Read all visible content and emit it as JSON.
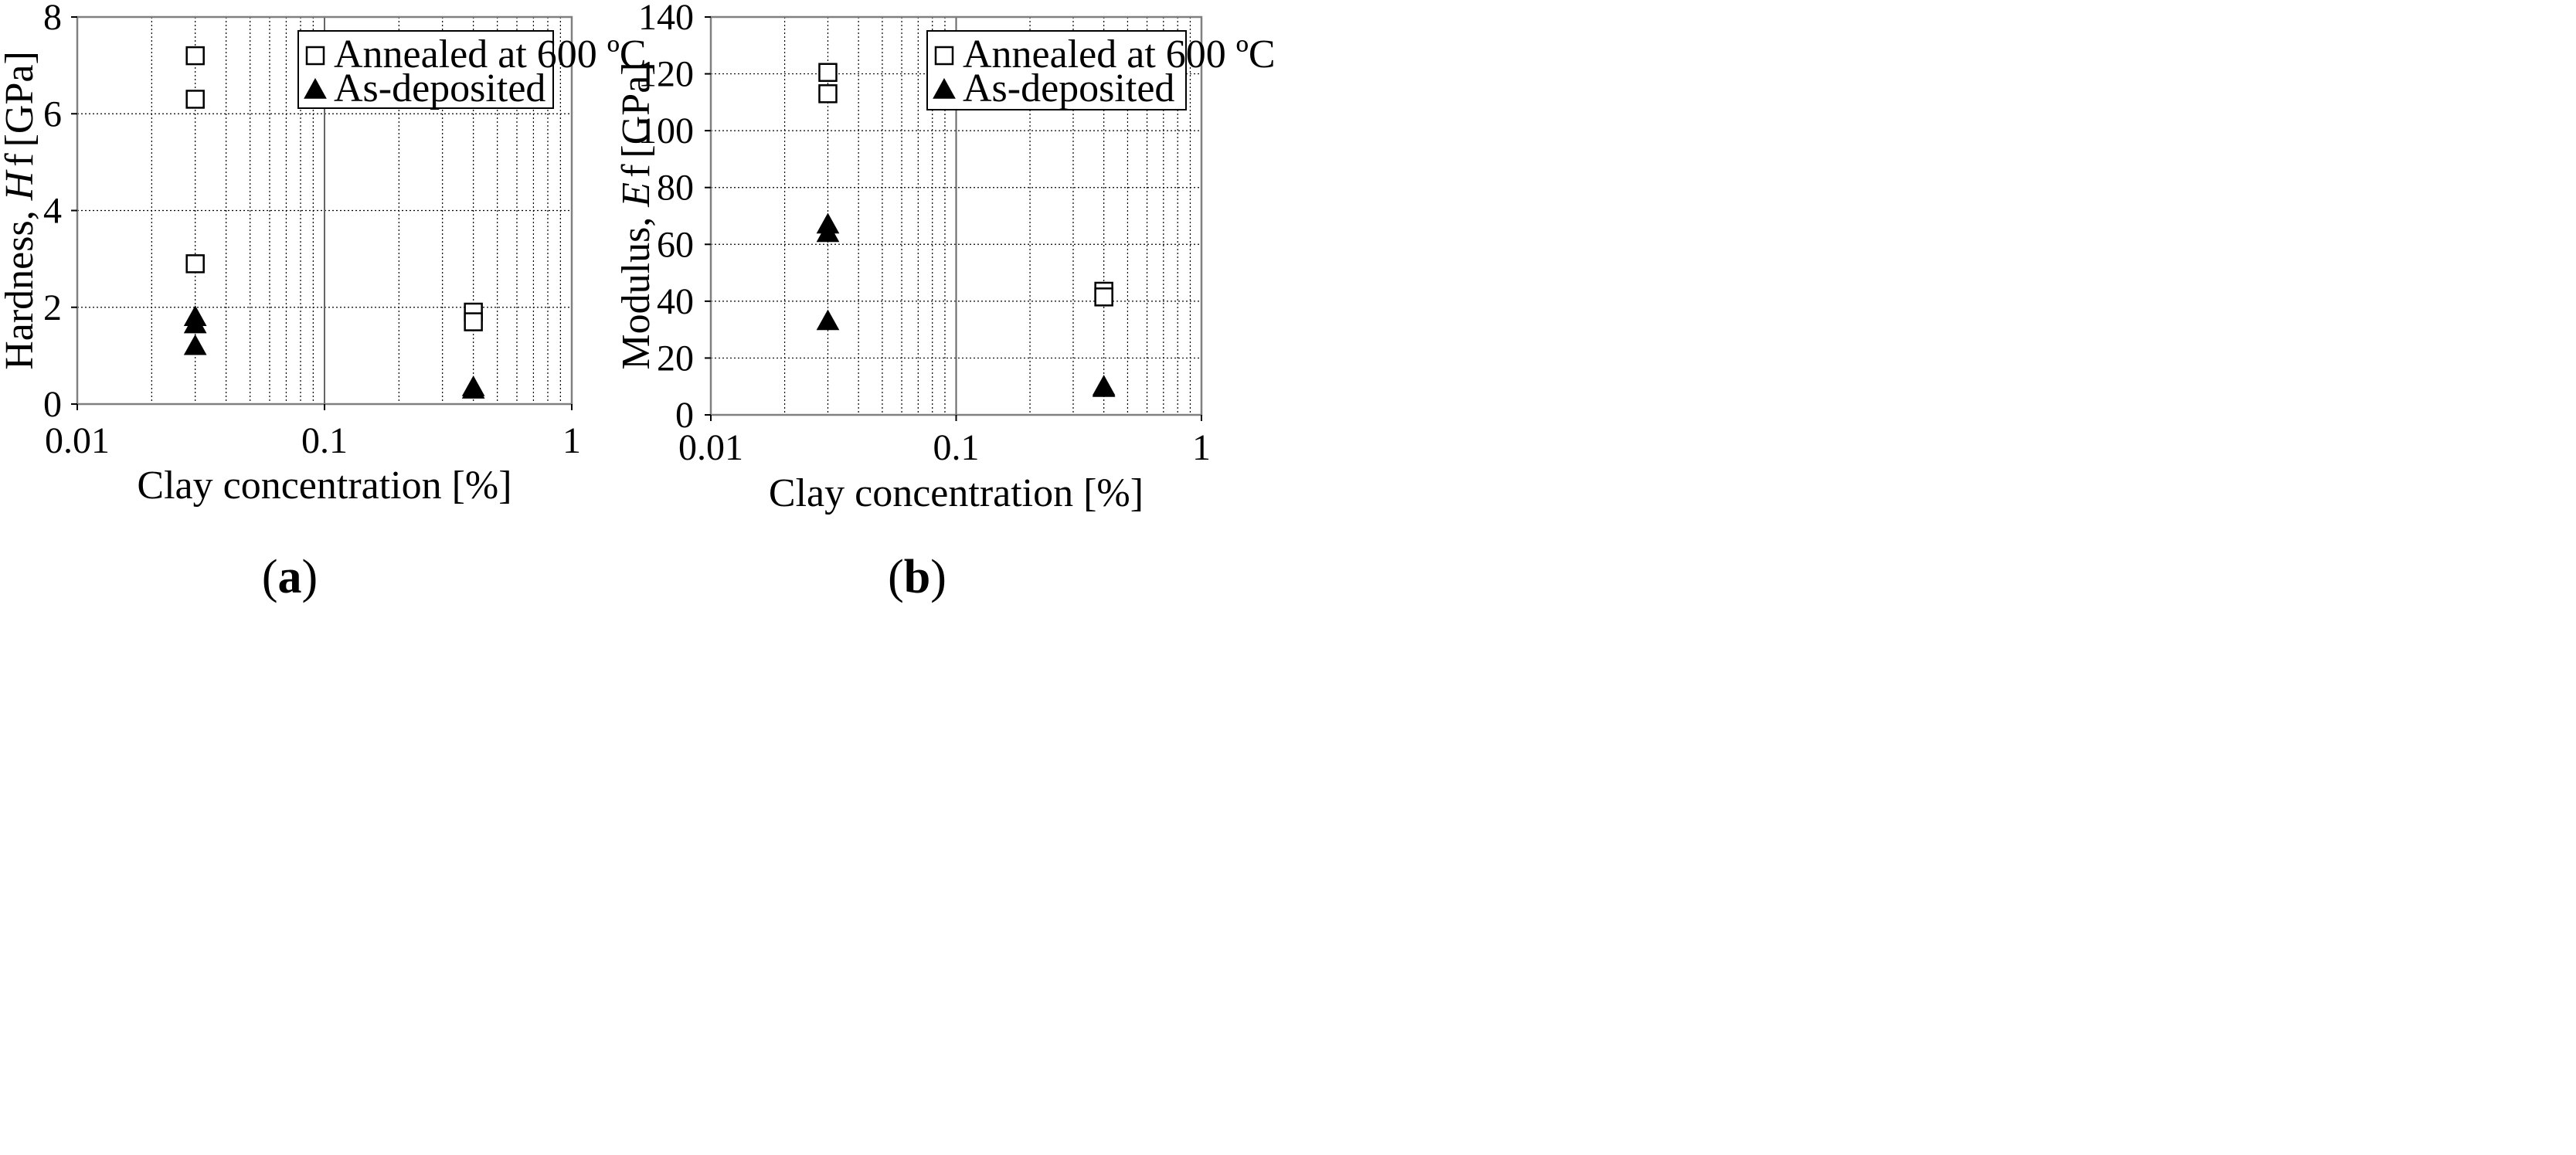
{
  "chart_data": [
    {
      "type": "scatter",
      "panel": "(a)",
      "caption_open": "(",
      "caption_letter": "a",
      "caption_close": ")",
      "xlabel": "Clay concentration [%]",
      "ylabel_prefix": "Hardness, ",
      "ylabel_symbol": "H",
      "ylabel_sub": "f",
      "ylabel_unit": "[GPa]",
      "x_scale": "log",
      "xlim": [
        0.01,
        1
      ],
      "ylim": [
        0,
        8
      ],
      "xticks": [
        "0.01",
        "0.1",
        "1"
      ],
      "yticks": [
        "0",
        "2",
        "4",
        "6",
        "8"
      ],
      "grid": true,
      "legend_position": "top-right",
      "series": [
        {
          "name": "Annealed at 600 ºC",
          "marker": "open-square",
          "x": [
            0.03,
            0.03,
            0.03,
            0.4,
            0.4
          ],
          "y": [
            7.2,
            6.3,
            2.9,
            1.9,
            1.7
          ]
        },
        {
          "name": "As-deposited",
          "marker": "filled-triangle",
          "x": [
            0.03,
            0.03,
            0.03,
            0.4,
            0.4
          ],
          "y": [
            1.8,
            1.65,
            1.2,
            0.35,
            0.3
          ]
        }
      ]
    },
    {
      "type": "scatter",
      "panel": "(b)",
      "caption_open": "(",
      "caption_letter": "b",
      "caption_close": ")",
      "xlabel": "Clay concentration [%]",
      "ylabel_prefix": "Modulus, ",
      "ylabel_symbol": "E",
      "ylabel_sub": "f",
      "ylabel_unit": "[GPa]",
      "x_scale": "log",
      "xlim": [
        0.01,
        1
      ],
      "ylim": [
        0,
        140
      ],
      "xticks": [
        "0.01",
        "0.1",
        "1"
      ],
      "yticks": [
        "0",
        "20",
        "40",
        "60",
        "80",
        "100",
        "120",
        "140"
      ],
      "grid": true,
      "legend_position": "top-right",
      "series": [
        {
          "name": "Annealed at 600 ºC",
          "marker": "open-square",
          "x": [
            0.03,
            0.03,
            0.4,
            0.4
          ],
          "y": [
            120.5,
            113,
            43.5,
            41.5
          ]
        },
        {
          "name": "As-deposited",
          "marker": "filled-triangle",
          "x": [
            0.03,
            0.03,
            0.03,
            0.4,
            0.4
          ],
          "y": [
            67,
            64,
            33,
            10,
            9.5
          ]
        }
      ]
    }
  ]
}
